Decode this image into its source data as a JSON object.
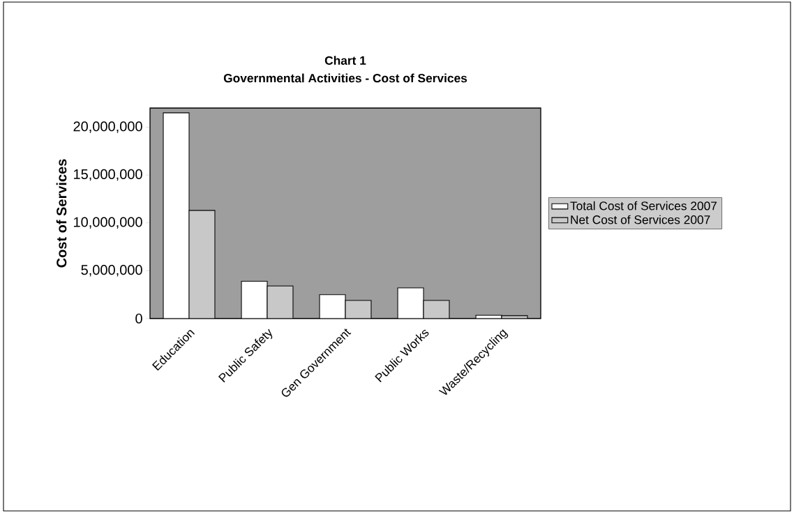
{
  "chart_data": {
    "type": "bar",
    "title": "Chart 1",
    "subtitle": "Governmental Activities - Cost of Services",
    "ylabel": "Cost of Services",
    "categories": [
      "Education",
      "Public Safety",
      "Gen Government",
      "Public Works",
      "Waste/Recycling"
    ],
    "series": [
      {
        "name": "Total Cost of Services 2007",
        "color": "#ffffff",
        "values": [
          21500000,
          3900000,
          2500000,
          3200000,
          350000
        ]
      },
      {
        "name": "Net Cost of Services 2007",
        "color": "#c8c8c8",
        "values": [
          11300000,
          3400000,
          1900000,
          1900000,
          300000
        ]
      }
    ],
    "ylim": [
      0,
      22000000
    ],
    "yticks": [
      {
        "value": 0,
        "label": "0"
      },
      {
        "value": 5000000,
        "label": "5,000,000"
      },
      {
        "value": 10000000,
        "label": "10,000,000"
      },
      {
        "value": 15000000,
        "label": "15,000,000"
      },
      {
        "value": 20000000,
        "label": "20,000,000"
      }
    ],
    "legend": "right"
  }
}
